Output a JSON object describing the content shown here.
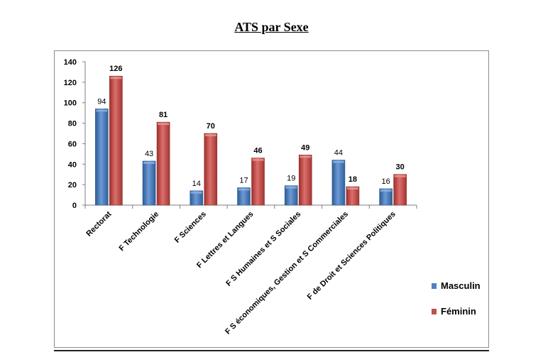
{
  "chart_data": {
    "type": "bar",
    "title": "ATS par Sexe",
    "categories": [
      "Rectorat",
      "F Technologie",
      "F Sciences",
      "F Lettres et Langues",
      "F S Humaines et S Sociales",
      "F S économiques, Gestion et S Commerciales",
      "F de Droit et Sciences Politiques"
    ],
    "series": [
      {
        "name": "Masculin",
        "values": [
          94,
          43,
          14,
          17,
          19,
          44,
          16
        ],
        "color": "#4f81bd"
      },
      {
        "name": "Féminin",
        "values": [
          126,
          81,
          70,
          46,
          49,
          18,
          30
        ],
        "color": "#c0504d"
      }
    ],
    "ylim": [
      0,
      140
    ],
    "yticks": [
      "0",
      "20",
      "40",
      "60",
      "80",
      "100",
      "120",
      "140"
    ],
    "xlabel": "",
    "ylabel": "",
    "grid": false,
    "legend_position": "right"
  }
}
